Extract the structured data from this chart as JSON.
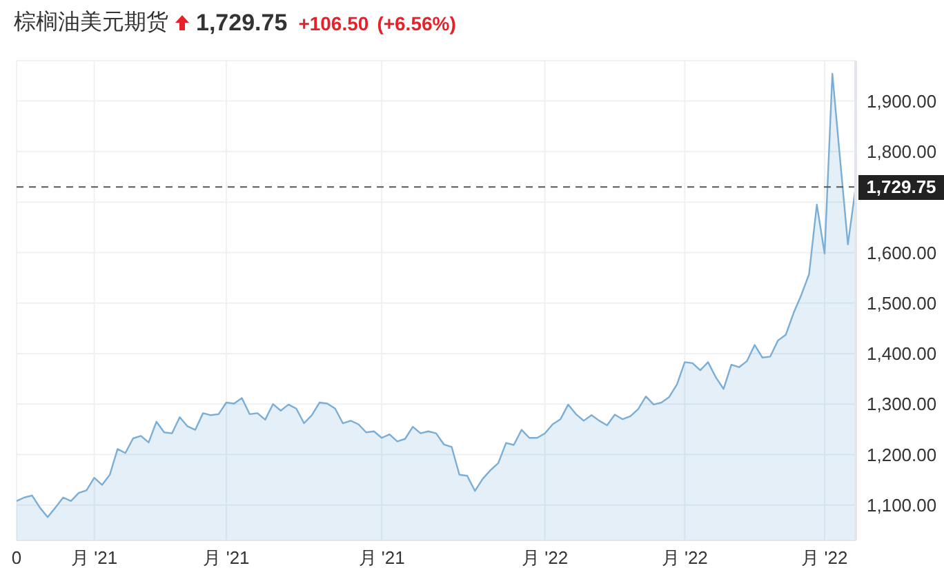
{
  "chart_data": {
    "type": "area",
    "title": "棕榈油美元期货",
    "annotations": [
      "1,729.75",
      "+106.50",
      "(+6.56%)"
    ],
    "categories": [
      "0",
      null,
      null,
      null,
      null,
      null,
      null,
      null,
      null,
      null,
      "月 '21",
      null,
      null,
      null,
      null,
      null,
      null,
      null,
      null,
      null,
      null,
      null,
      null,
      null,
      null,
      null,
      null,
      "月 '21",
      null,
      null,
      null,
      null,
      null,
      null,
      null,
      null,
      null,
      null,
      null,
      null,
      null,
      null,
      null,
      null,
      null,
      null,
      null,
      "月 '21",
      null,
      null,
      null,
      null,
      null,
      null,
      null,
      null,
      null,
      null,
      null,
      null,
      null,
      null,
      null,
      null,
      null,
      null,
      null,
      null,
      "月 '22",
      null,
      null,
      null,
      null,
      null,
      null,
      null,
      null,
      null,
      null,
      null,
      null,
      null,
      null,
      null,
      null,
      null,
      "月 '22",
      null,
      null,
      null,
      null,
      null,
      null,
      null,
      null,
      null,
      null,
      null,
      null,
      null,
      null,
      null,
      null,
      null,
      "月 '22",
      null,
      null,
      null,
      null
    ],
    "series": [
      {
        "color": "#7aaed6",
        "values": [
          1108,
          1115,
          1119,
          1095,
          1076,
          1095,
          1115,
          1108,
          1124,
          1129,
          1154,
          1140,
          1160,
          1211,
          1203,
          1232,
          1237,
          1224,
          1265,
          1244,
          1242,
          1274,
          1256,
          1249,
          1282,
          1278,
          1280,
          1303,
          1301,
          1312,
          1280,
          1282,
          1269,
          1300,
          1287,
          1299,
          1291,
          1262,
          1278,
          1303,
          1301,
          1291,
          1262,
          1267,
          1260,
          1244,
          1246,
          1233,
          1240,
          1226,
          1231,
          1255,
          1242,
          1246,
          1242,
          1220,
          1215,
          1160,
          1158,
          1128,
          1152,
          1169,
          1183,
          1223,
          1219,
          1249,
          1233,
          1233,
          1242,
          1260,
          1270,
          1299,
          1280,
          1267,
          1278,
          1267,
          1258,
          1279,
          1270,
          1276,
          1290,
          1315,
          1299,
          1303,
          1314,
          1339,
          1383,
          1381,
          1367,
          1383,
          1353,
          1330,
          1378,
          1373,
          1385,
          1417,
          1392,
          1394,
          1426,
          1437,
          1480,
          1516,
          1557,
          1695,
          1598,
          1954,
          1784,
          1616,
          1729.75
        ]
      }
    ],
    "ylim": [
      1030,
      1980
    ],
    "yticks": [
      {
        "value": 1100,
        "label": "1,100.00"
      },
      {
        "value": 1200,
        "label": "1,200.00"
      },
      {
        "value": 1300,
        "label": "1,300.00"
      },
      {
        "value": 1400,
        "label": "1,400.00"
      },
      {
        "value": 1500,
        "label": "1,500.00"
      },
      {
        "value": 1600,
        "label": "1,600.00"
      },
      {
        "value": 1700,
        "label": null
      },
      {
        "value": 1800,
        "label": "1,800.00"
      },
      {
        "value": 1900,
        "label": "1,900.00"
      }
    ],
    "ref_lines": [
      {
        "axis": "y",
        "value": 1729.75,
        "label": "1,729.75",
        "color": "#555555",
        "line_style": "dashed"
      }
    ],
    "grid": true
  }
}
